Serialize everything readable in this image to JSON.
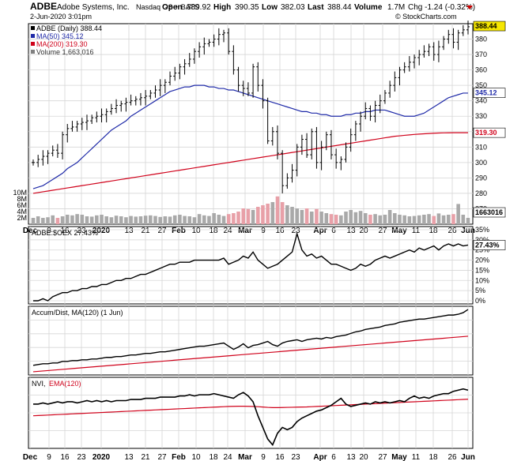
{
  "header": {
    "symbol": "ADBE",
    "company": "Adobe Systems, Inc.",
    "exchange": "Nasdaq GS + BATS",
    "date": "2-Jun-2020 3:01pm",
    "open_label": "Open",
    "open": "389.92",
    "high_label": "High",
    "high": "390.35",
    "low_label": "Low",
    "low": "382.03",
    "last_label": "Last",
    "last": "388.44",
    "volume_label": "Volume",
    "volume": "1.7M",
    "chg_label": "Chg",
    "chg": "-1.24 (-0.32%)",
    "watermark": "© StockCharts.com"
  },
  "colors": {
    "price": "#000000",
    "ma50": "#1f2aa8",
    "ma200": "#d0021b",
    "vol_down": "#e8a0a8",
    "vol_up": "#a9a9a9",
    "last_tag_bg": "#f5e600",
    "ma50_tag_bg": "#ffffff",
    "line": "#000000"
  },
  "chart_data": [
    {
      "type": "line",
      "panel": "price",
      "legend": [
        {
          "label": "ADBE (Daily) 388.44",
          "color": "#000000"
        },
        {
          "label": "MA(50) 345.12",
          "color": "#1f2aa8"
        },
        {
          "label": "MA(200) 319.30",
          "color": "#d0021b"
        },
        {
          "label": "Volume 1,663,016",
          "color": "#808080"
        }
      ],
      "ylim": [
        260,
        390
      ],
      "y_ticks": [
        270,
        280,
        290,
        300,
        310,
        320,
        330,
        340,
        350,
        360,
        370,
        380
      ],
      "volume_ticks": [
        "2M",
        "4M",
        "6M",
        "8M",
        "10M"
      ],
      "volume_tick_values": [
        2,
        4,
        6,
        8,
        10
      ],
      "volume_axis_max": 10,
      "last_value_tag": "388.44",
      "ma50_tag": "345.12",
      "ma200_tag": "319.30",
      "volume_tag": "1663016",
      "x_labels": [
        "Dec",
        "9",
        "16",
        "23",
        "2020",
        "13",
        "21",
        "27",
        "Feb",
        "10",
        "18",
        "24",
        "Mar",
        "9",
        "16",
        "23",
        "Apr",
        "6",
        "13",
        "20",
        "27",
        "May",
        "11",
        "18",
        "26",
        "Jun"
      ],
      "close": [
        300,
        302,
        304,
        306,
        308,
        306,
        318,
        322,
        323,
        325,
        326,
        327,
        329,
        330,
        331,
        333,
        335,
        337,
        338,
        339,
        340,
        341,
        342,
        343,
        345,
        347,
        350,
        352,
        356,
        358,
        362,
        364,
        367,
        372,
        375,
        377,
        378,
        380,
        383,
        384,
        372,
        360,
        350,
        348,
        345,
        362,
        350,
        340,
        314,
        320,
        306,
        285,
        290,
        295,
        310,
        315,
        305,
        320,
        300,
        310,
        318,
        305,
        300,
        302,
        310,
        318,
        325,
        330,
        335,
        330,
        337,
        340,
        345,
        350,
        355,
        360,
        362,
        365,
        368,
        370,
        372,
        375,
        370,
        375,
        380,
        383,
        378,
        384,
        386,
        388
      ],
      "ma50": [
        283,
        284,
        285,
        287,
        289,
        291,
        293,
        296,
        298,
        300,
        303,
        306,
        309,
        312,
        315,
        318,
        321,
        323,
        325,
        327,
        330,
        332,
        334,
        336,
        338,
        340,
        342,
        344,
        346,
        347,
        348,
        349,
        349,
        350,
        350,
        350,
        349,
        349,
        348,
        348,
        347,
        347,
        346,
        345,
        344,
        343,
        342,
        341,
        340,
        339,
        338,
        337,
        336,
        335,
        334,
        333,
        333,
        332,
        332,
        331,
        331,
        330,
        330,
        330,
        331,
        331,
        332,
        332,
        333,
        333,
        334,
        334,
        334,
        333,
        332,
        331,
        330,
        330,
        330,
        331,
        332,
        334,
        336,
        338,
        340,
        342,
        343,
        344,
        345,
        345
      ],
      "ma200": [
        280,
        280.5,
        281,
        281.5,
        282,
        282.5,
        283,
        283.5,
        284,
        284.5,
        285,
        285.5,
        286,
        286.5,
        287,
        287.5,
        288,
        288.5,
        289,
        289.5,
        290,
        290.5,
        291,
        291.5,
        292,
        292.5,
        293,
        293.5,
        294,
        294.5,
        295,
        295.5,
        296,
        296.5,
        297,
        297.5,
        298,
        298.5,
        299,
        299.5,
        300,
        300.5,
        301,
        301.5,
        302,
        302.5,
        303,
        303.5,
        304,
        304.5,
        305,
        305.5,
        306,
        306.5,
        307,
        307.5,
        308,
        308.5,
        309,
        309.5,
        310,
        310.5,
        311,
        311.5,
        312,
        312.5,
        313,
        313.5,
        314,
        314.5,
        315,
        315.5,
        316,
        316.5,
        317,
        317.3,
        317.6,
        317.9,
        318.2,
        318.4,
        318.6,
        318.8,
        319,
        319.1,
        319.2,
        319.25,
        319.3,
        319.3,
        319.3,
        319.3
      ],
      "volume": [
        2,
        2.5,
        2,
        2.2,
        2.8,
        2,
        2.5,
        3,
        2.8,
        3.2,
        3,
        2.5,
        2.4,
        2.8,
        3,
        2.5,
        2.2,
        2.7,
        2.5,
        2.2,
        2.6,
        2.4,
        2.5,
        2.7,
        2.8,
        2.6,
        2.3,
        2.5,
        2.4,
        2.8,
        3,
        2.6,
        2.5,
        2.2,
        3.2,
        2.8,
        2.6,
        3.5,
        3,
        2.6,
        3.2,
        3.5,
        4,
        5,
        4.8,
        4.5,
        5.5,
        6,
        6.5,
        7,
        8.8,
        7,
        6,
        5.5,
        5,
        4.5,
        5,
        4,
        4.8,
        4,
        3.5,
        3.2,
        3,
        2.8,
        4,
        4.5,
        3.8,
        4.2,
        3.5,
        3,
        3.2,
        2.8,
        3,
        4.5,
        3.5,
        3,
        2.8,
        2.5,
        2.6,
        2.8,
        3,
        3.2,
        2.6,
        3.4,
        2.8,
        3,
        3.2,
        6.4,
        3,
        2
      ]
    },
    {
      "type": "line",
      "panel": "relative",
      "legend": [
        {
          "label": "ADBE:$OEX 27.43%",
          "color": "#000000"
        }
      ],
      "ylim": [
        0,
        35
      ],
      "y_ticks": [
        "0%",
        "5%",
        "10%",
        "15%",
        "20%",
        "25%",
        "30%",
        "35%"
      ],
      "y_tick_values": [
        0,
        5,
        10,
        15,
        20,
        25,
        30,
        35
      ],
      "last_value_tag": "27.43%",
      "values": [
        0,
        0,
        1,
        0,
        2,
        3,
        4,
        4,
        5,
        5,
        6,
        6,
        7,
        7,
        8,
        8,
        9,
        10,
        10,
        11,
        11,
        12,
        13,
        13,
        14,
        15,
        16,
        17,
        18,
        18,
        19,
        19,
        19,
        20,
        20,
        20,
        20,
        20,
        20,
        21,
        18,
        19,
        20,
        22,
        21,
        24,
        20,
        18,
        16,
        17,
        18,
        20,
        22,
        24,
        33,
        25,
        22,
        23,
        21,
        22,
        20,
        18,
        18,
        17,
        16,
        15,
        16,
        18,
        17,
        18,
        20,
        21,
        22,
        21,
        22,
        23,
        24,
        25,
        24,
        26,
        25,
        26,
        27,
        25,
        27,
        28,
        27,
        28,
        27,
        27.43
      ]
    },
    {
      "type": "line",
      "panel": "accum_dist",
      "legend": [
        {
          "label": "Accum/Dist, MA(120) (1 Jun)",
          "color": "#000000"
        }
      ],
      "ad": [
        10,
        11,
        12,
        12,
        13,
        13,
        15,
        15,
        16,
        16,
        17,
        17,
        18,
        18,
        19,
        20,
        20,
        21,
        21,
        22,
        23,
        23,
        24,
        25,
        25,
        26,
        27,
        27,
        28,
        29,
        30,
        31,
        32,
        33,
        34,
        34,
        35,
        36,
        37,
        38,
        34,
        30,
        33,
        37,
        32,
        35,
        36,
        38,
        40,
        36,
        34,
        38,
        40,
        41,
        42,
        40,
        42,
        43,
        44,
        43,
        45,
        44,
        46,
        47,
        48,
        50,
        52,
        53,
        55,
        56,
        57,
        58,
        60,
        61,
        62,
        64,
        65,
        66,
        67,
        68,
        68,
        69,
        70,
        71,
        72,
        73,
        73,
        74,
        76,
        80
      ],
      "ma120": [
        2,
        2.5,
        3,
        3.5,
        4,
        4.5,
        5,
        5.5,
        6,
        6.5,
        7,
        7.5,
        8,
        8.5,
        9,
        9.5,
        10,
        10.5,
        11,
        11.5,
        12,
        12.5,
        13,
        13.5,
        14,
        14.5,
        15,
        15.5,
        16,
        16.5,
        17,
        17.5,
        18,
        18.5,
        19,
        19.5,
        20,
        20.5,
        21,
        21.5,
        22,
        22.5,
        23,
        23.5,
        24,
        24.5,
        25,
        25.5,
        26,
        26.5,
        27,
        27.5,
        28,
        28.5,
        29,
        29.5,
        30,
        30.5,
        31,
        31.5,
        32,
        32.5,
        33,
        33.5,
        34,
        34.5,
        35,
        35.5,
        36,
        36.5,
        37,
        37.5,
        38,
        38.5,
        39,
        39.5,
        40,
        40.5,
        41,
        41.5,
        42,
        42.5,
        43,
        43.5,
        44,
        44.5,
        45,
        45.5,
        46,
        46.5
      ]
    },
    {
      "type": "line",
      "panel": "nvi",
      "legend": [
        {
          "label": "NVI,",
          "color": "#000000"
        },
        {
          "label": "EMA(120)",
          "color": "#d0021b"
        }
      ],
      "nvi": [
        50,
        50,
        51,
        50,
        51,
        52,
        51,
        52,
        52,
        51,
        52,
        53,
        52,
        53,
        52,
        53,
        52,
        53,
        53,
        53,
        54,
        54,
        54,
        55,
        55,
        55,
        56,
        56,
        56,
        56,
        57,
        57,
        58,
        57,
        58,
        58,
        58,
        59,
        58,
        57,
        56,
        55,
        58,
        60,
        57,
        52,
        40,
        30,
        20,
        15,
        25,
        30,
        28,
        30,
        35,
        38,
        40,
        42,
        44,
        45,
        47,
        49,
        52,
        55,
        50,
        48,
        49,
        50,
        51,
        50,
        52,
        51,
        52,
        51,
        52,
        53,
        52,
        55,
        57,
        55,
        56,
        55,
        57,
        58,
        59,
        59,
        61,
        62,
        63,
        62
      ],
      "ema120": [
        40,
        40.2,
        40.4,
        40.6,
        40.8,
        41,
        41.2,
        41.4,
        41.6,
        41.8,
        42,
        42.2,
        42.4,
        42.6,
        42.8,
        43,
        43.2,
        43.4,
        43.6,
        43.8,
        44,
        44.2,
        44.4,
        44.6,
        44.8,
        45,
        45.2,
        45.4,
        45.6,
        45.8,
        46,
        46.2,
        46.4,
        46.6,
        46.8,
        47,
        47.2,
        47.4,
        47.6,
        47.8,
        48,
        48.1,
        48.2,
        48.2,
        48.1,
        48,
        47.8,
        47.5,
        47.2,
        47,
        47,
        47.1,
        47.2,
        47.3,
        47.4,
        47.5,
        47.6,
        47.8,
        48,
        48.2,
        48.4,
        48.6,
        48.8,
        49,
        49.2,
        49.4,
        49.6,
        49.8,
        50,
        50.2,
        50.4,
        50.6,
        50.8,
        51,
        51.2,
        51.4,
        51.6,
        51.8,
        52,
        52.2,
        52.4,
        52.6,
        52.8,
        53,
        53.2,
        53.4,
        53.6,
        53.8,
        54,
        54.2
      ]
    }
  ]
}
